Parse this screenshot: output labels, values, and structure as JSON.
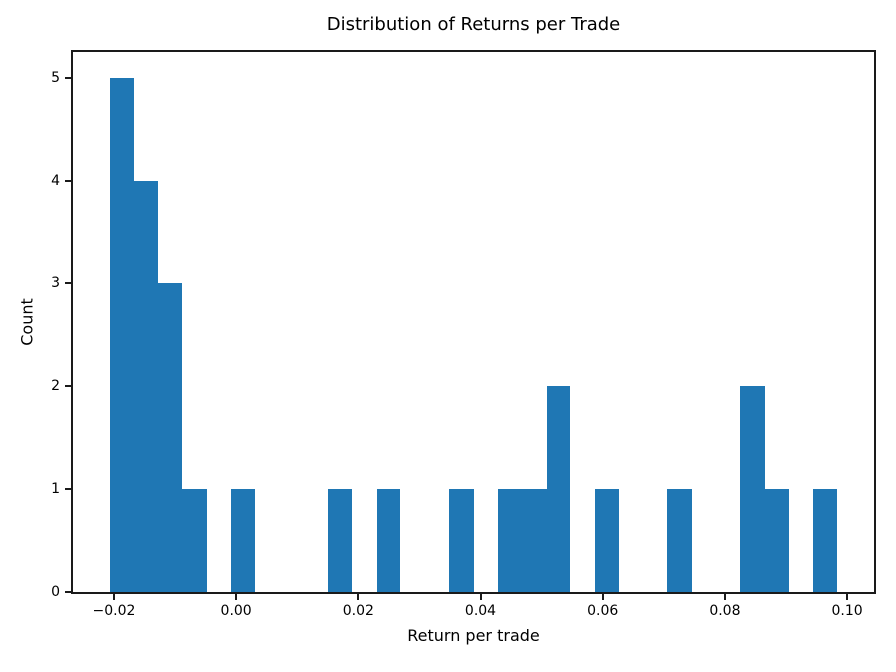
{
  "figure": {
    "background": "#ffffff"
  },
  "chart_data": {
    "type": "bar",
    "subtype": "histogram",
    "title": "Distribution of Returns per Trade",
    "xlabel": "Return per trade",
    "ylabel": "Count",
    "bar_color": "#1f77b4",
    "axis_color": "#1a1a1a",
    "grid": false,
    "bin_edges": [
      -0.0207,
      -0.0167,
      -0.0128,
      -0.0088,
      -0.0048,
      -0.0009,
      0.0031,
      0.0071,
      0.0111,
      0.015,
      0.019,
      0.023,
      0.0269,
      0.0309,
      0.0349,
      0.0389,
      0.0428,
      0.0468,
      0.0508,
      0.0547,
      0.0587,
      0.0627,
      0.0666,
      0.0706,
      0.0746,
      0.0786,
      0.0825,
      0.0865,
      0.0905,
      0.0944,
      0.0984
    ],
    "counts": [
      5,
      4,
      3,
      1,
      0,
      1,
      0,
      0,
      0,
      1,
      0,
      1,
      0,
      0,
      1,
      0,
      1,
      1,
      2,
      0,
      1,
      0,
      0,
      1,
      0,
      0,
      2,
      1,
      0,
      1
    ],
    "xlim": [
      -0.0267,
      0.1044
    ],
    "ylim": [
      0,
      5.25
    ],
    "x_ticks": [
      -0.02,
      0.0,
      0.02,
      0.04,
      0.06,
      0.08,
      0.1
    ],
    "x_tick_labels": [
      "−0.02",
      "0.00",
      "0.02",
      "0.04",
      "0.06",
      "0.08",
      "0.10"
    ],
    "y_ticks": [
      0,
      1,
      2,
      3,
      4,
      5
    ],
    "y_tick_labels": [
      "0",
      "1",
      "2",
      "3",
      "4",
      "5"
    ]
  }
}
